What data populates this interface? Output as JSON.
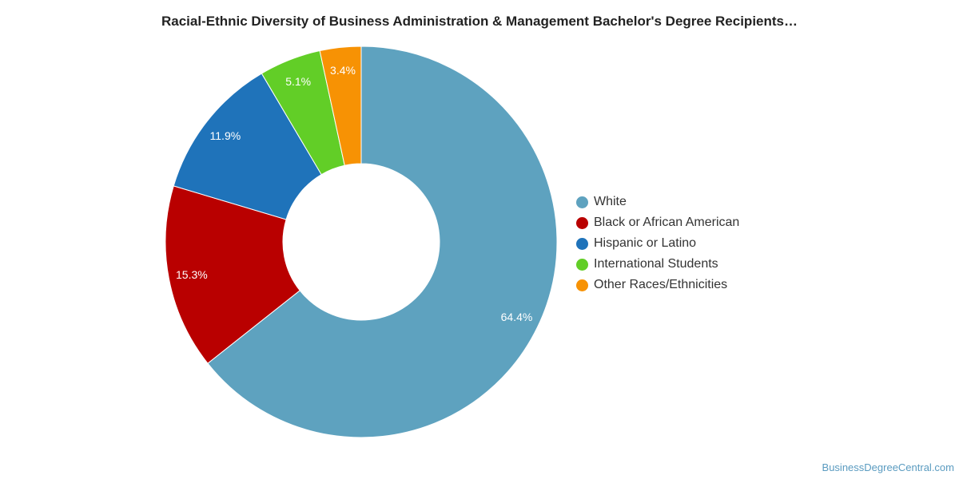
{
  "chart_data": {
    "type": "pie",
    "donut": true,
    "title": "Racial-Ethnic Diversity of Business Administration & Management Bachelor's Degree Recipients…",
    "legend_position": "right",
    "slices": [
      {
        "label": "White",
        "value": 64.4,
        "display": "64.4%",
        "color": "#5ea2bf"
      },
      {
        "label": "Black or African American",
        "value": 15.3,
        "display": "15.3%",
        "color": "#b90000"
      },
      {
        "label": "Hispanic or Latino",
        "value": 11.9,
        "display": "11.9%",
        "color": "#1f73ba"
      },
      {
        "label": "International Students",
        "value": 5.1,
        "display": "5.1%",
        "color": "#62ce27"
      },
      {
        "label": "Other Races/Ethnicities",
        "value": 3.4,
        "display": "3.4%",
        "color": "#f79204"
      }
    ]
  },
  "footer": {
    "credit": "BusinessDegreeCentral.com"
  }
}
